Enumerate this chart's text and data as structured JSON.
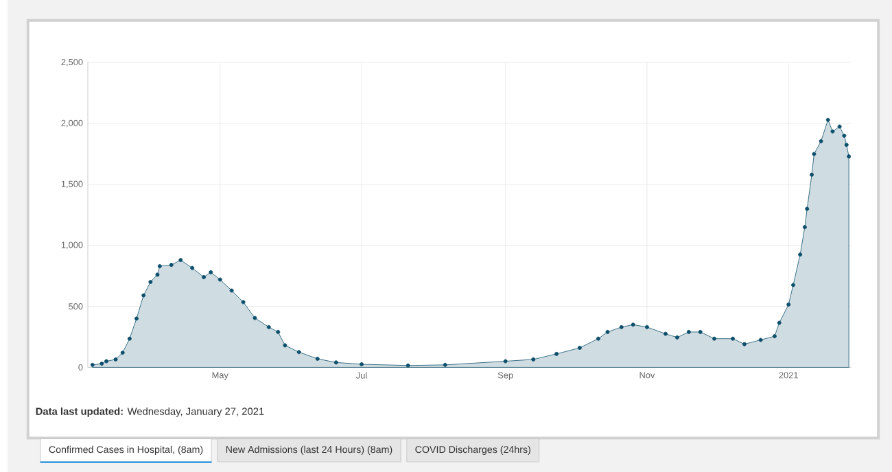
{
  "chart_data": {
    "type": "area",
    "color": "#0d4f6b",
    "marker": "circle",
    "grid": true,
    "x": [
      "2020-03-07",
      "2020-03-11",
      "2020-03-13",
      "2020-03-17",
      "2020-03-20",
      "2020-03-23",
      "2020-03-26",
      "2020-03-29",
      "2020-04-01",
      "2020-04-04",
      "2020-04-05",
      "2020-04-10",
      "2020-04-14",
      "2020-04-19",
      "2020-04-24",
      "2020-04-27",
      "2020-05-01",
      "2020-05-06",
      "2020-05-11",
      "2020-05-16",
      "2020-05-22",
      "2020-05-26",
      "2020-05-29",
      "2020-06-04",
      "2020-06-12",
      "2020-06-20",
      "2020-07-01",
      "2020-07-21",
      "2020-08-06",
      "2020-09-01",
      "2020-09-13",
      "2020-09-23",
      "2020-10-03",
      "2020-10-11",
      "2020-10-15",
      "2020-10-21",
      "2020-10-26",
      "2020-11-01",
      "2020-11-09",
      "2020-11-14",
      "2020-11-19",
      "2020-11-24",
      "2020-11-30",
      "2020-12-08",
      "2020-12-13",
      "2020-12-20",
      "2020-12-26",
      "2020-12-28",
      "2021-01-01",
      "2021-01-03",
      "2021-01-06",
      "2021-01-08",
      "2021-01-09",
      "2021-01-11",
      "2021-01-12",
      "2021-01-15",
      "2021-01-18",
      "2021-01-20",
      "2021-01-23",
      "2021-01-25",
      "2021-01-26",
      "2021-01-27"
    ],
    "values": [
      20,
      30,
      50,
      65,
      120,
      235,
      400,
      590,
      700,
      760,
      830,
      840,
      880,
      815,
      740,
      780,
      720,
      630,
      535,
      405,
      330,
      290,
      180,
      125,
      70,
      40,
      25,
      15,
      20,
      50,
      65,
      110,
      160,
      235,
      290,
      330,
      350,
      330,
      275,
      245,
      290,
      290,
      235,
      235,
      190,
      225,
      255,
      365,
      515,
      675,
      925,
      1150,
      1300,
      1580,
      1750,
      1855,
      2030,
      1935,
      1975,
      1900,
      1825,
      1730
    ],
    "xlim": [
      "2020-03-05",
      "2021-01-28"
    ],
    "xticks": [
      {
        "value": "2020-05-01",
        "label": "May"
      },
      {
        "value": "2020-07-01",
        "label": "Jul"
      },
      {
        "value": "2020-09-01",
        "label": "Sep"
      },
      {
        "value": "2020-11-01",
        "label": "Nov"
      },
      {
        "value": "2021-01-01",
        "label": "2021"
      }
    ],
    "ylim": [
      0,
      2500
    ],
    "yticks": [
      0,
      500,
      {
        "value": 1000,
        "label": "1,000"
      },
      {
        "value": 1500,
        "label": "1,500"
      },
      {
        "value": 2000,
        "label": "2,000"
      },
      {
        "value": 2500,
        "label": "2,500"
      }
    ],
    "annotations": [
      "**Data last updated:** Wednesday, January 27, 2021",
      "Confirmed Cases in Hospital, (8am)",
      "New Admissions (last 24 Hours) (8am)",
      "COVID Discharges (24hrs)"
    ]
  }
}
